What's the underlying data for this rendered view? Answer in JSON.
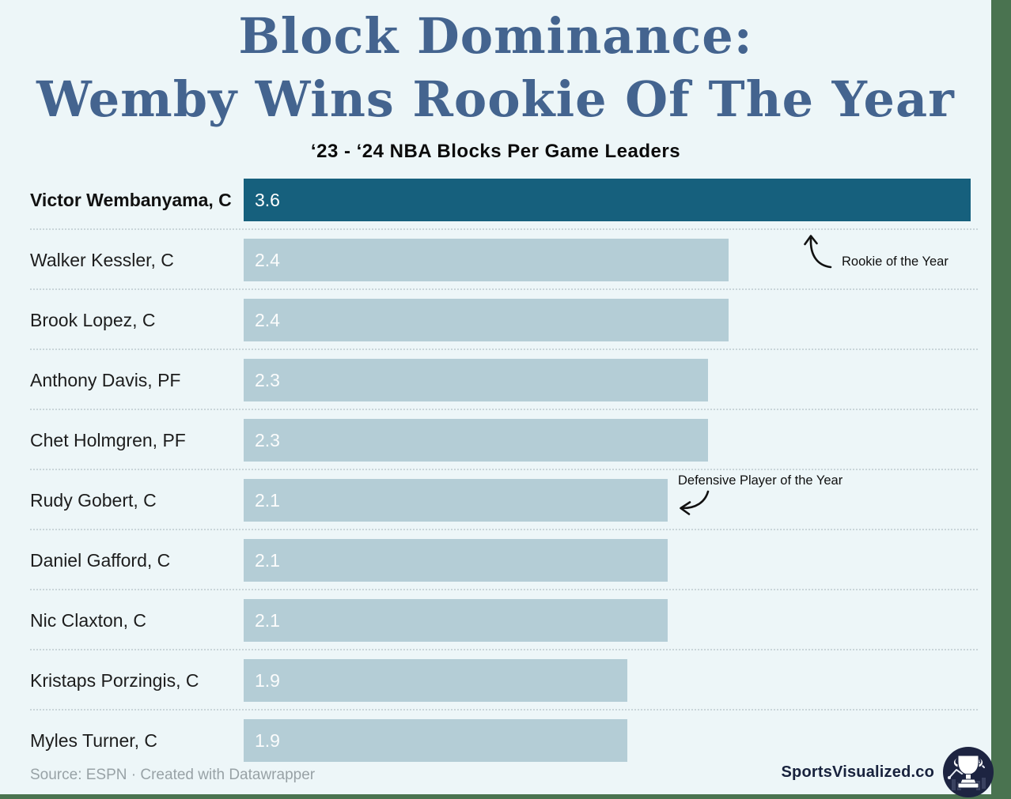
{
  "page": {
    "title_line1": "Block Dominance:",
    "title_line2": "Wemby Wins Rookie Of The Year",
    "subtitle": "‘23 - ‘24 NBA Blocks Per Game Leaders"
  },
  "chart_data": {
    "type": "bar",
    "orientation": "horizontal",
    "title": "Block Dominance: Wemby Wins Rookie Of The Year",
    "subtitle": "‘23 - ‘24 NBA Blocks Per Game Leaders",
    "value_unit": "blocks per game",
    "xlim": [
      0,
      3.6
    ],
    "grid": false,
    "legend": false,
    "categories": [
      "Victor Wembanyama, C",
      "Walker Kessler, C",
      "Brook Lopez, C",
      "Anthony Davis, PF",
      "Chet Holmgren, PF",
      "Rudy Gobert, C",
      "Daniel Gafford, C",
      "Nic Claxton, C",
      "Kristaps Porzingis, C",
      "Myles Turner, C"
    ],
    "values": [
      3.6,
      2.4,
      2.4,
      2.3,
      2.3,
      2.1,
      2.1,
      2.1,
      1.9,
      1.9
    ],
    "players": [
      {
        "name": "Victor Wembanyama, C",
        "value": 3.6,
        "highlight": true
      },
      {
        "name": "Walker Kessler, C",
        "value": 2.4,
        "highlight": false
      },
      {
        "name": "Brook Lopez, C",
        "value": 2.4,
        "highlight": false
      },
      {
        "name": "Anthony Davis, PF",
        "value": 2.3,
        "highlight": false
      },
      {
        "name": "Chet Holmgren, PF",
        "value": 2.3,
        "highlight": false
      },
      {
        "name": "Rudy Gobert, C",
        "value": 2.1,
        "highlight": false
      },
      {
        "name": "Daniel Gafford, C",
        "value": 2.1,
        "highlight": false
      },
      {
        "name": "Nic Claxton, C",
        "value": 2.1,
        "highlight": false
      },
      {
        "name": "Kristaps Porzingis, C",
        "value": 1.9,
        "highlight": false
      },
      {
        "name": "Myles Turner, C",
        "value": 1.9,
        "highlight": false
      }
    ],
    "annotations": [
      {
        "text": "Rookie of the Year",
        "target": "Victor Wembanyama, C"
      },
      {
        "text": "Defensive Player of the Year",
        "target": "Rudy Gobert, C"
      }
    ]
  },
  "footer": {
    "source": "Source: ESPN · Created with Datawrapper",
    "brand": "SportsVisualized.co",
    "logo_icon": "trophy-logo"
  },
  "colors": {
    "background": "#edf6f8",
    "title": "#44648f",
    "bar_highlight": "#16607d",
    "bar_default": "#b4cdd6",
    "bar_value_text": "#ffffff",
    "separator": "#c9d5d9",
    "annotation_text": "#101010",
    "footer_text": "#98a2a6",
    "brand_text": "#18223d",
    "accent_strip": "#4a7350",
    "logo_navy": "#1d2441"
  }
}
